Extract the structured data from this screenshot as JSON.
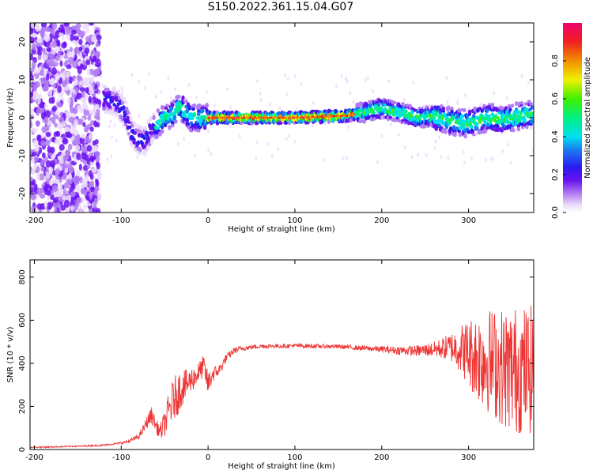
{
  "title": "S150.2022.361.15.04.G07",
  "chart_data": [
    {
      "type": "heatmap",
      "xlabel": "Height of straight line (km)",
      "ylabel": "Frequency (Hz)",
      "xlim": [
        -205,
        375
      ],
      "ylim": [
        -25,
        25
      ],
      "x_ticks": [
        -200,
        -100,
        0,
        100,
        200,
        300
      ],
      "y_ticks": [
        -20,
        -10,
        0,
        10,
        20
      ],
      "colorbar": {
        "label": "Normalized spectral amplitude",
        "range": [
          0.0,
          1.0
        ],
        "ticks": [
          0.0,
          0.2,
          0.4,
          0.6,
          0.8
        ],
        "tick_labels": [
          "0.0",
          "0.2",
          "0.4",
          "0.6",
          "0.8"
        ]
      },
      "ridge": {
        "x": [
          -115,
          -105,
          -95,
          -88,
          -80,
          -72,
          -65,
          -55,
          -40,
          -32,
          -20,
          0,
          50,
          100,
          130,
          160,
          180,
          200,
          220,
          240,
          260,
          280,
          300,
          320,
          340,
          360,
          375
        ],
        "freq": [
          5,
          4,
          1,
          -4,
          -6,
          -6,
          -3,
          -1,
          1,
          3,
          0,
          0,
          0,
          0,
          0.3,
          0.5,
          1.5,
          2.5,
          1.5,
          0,
          0.5,
          -1,
          -1.5,
          0,
          -0.5,
          0.5,
          1
        ]
      }
    },
    {
      "type": "line",
      "xlabel": "Height of straight line (km)",
      "ylabel": "SNR (10 * v/v)",
      "xlim": [
        -205,
        375
      ],
      "ylim": [
        0,
        880
      ],
      "x_ticks": [
        -200,
        -100,
        0,
        100,
        200,
        300
      ],
      "y_ticks": [
        0,
        200,
        400,
        600,
        800
      ],
      "color": "#ee3333",
      "series": [
        {
          "x": [
            -205,
            -180,
            -150,
            -120,
            -100,
            -90,
            -80,
            -75,
            -70,
            -65,
            -60,
            -55,
            -50,
            -45,
            -40,
            -35,
            -30,
            -25,
            -20,
            -15,
            -10,
            -5,
            0,
            5,
            10,
            15,
            20,
            30,
            40,
            60,
            80,
            100,
            120,
            150,
            180,
            200,
            220,
            240,
            260,
            270,
            280,
            290,
            300,
            310,
            320,
            330,
            340,
            350,
            360,
            375
          ],
          "y": [
            10,
            12,
            15,
            20,
            30,
            40,
            60,
            90,
            130,
            160,
            110,
            80,
            120,
            180,
            230,
            260,
            290,
            300,
            320,
            340,
            360,
            390,
            300,
            350,
            360,
            380,
            420,
            460,
            470,
            480,
            480,
            482,
            480,
            478,
            470,
            465,
            460,
            458,
            465,
            470,
            475,
            470,
            450,
            430,
            420,
            400,
            380,
            370,
            370,
            370
          ],
          "spread": [
            3,
            3,
            3,
            4,
            5,
            8,
            12,
            20,
            30,
            40,
            30,
            40,
            60,
            90,
            100,
            100,
            90,
            70,
            60,
            55,
            50,
            50,
            60,
            40,
            30,
            25,
            20,
            15,
            12,
            10,
            10,
            10,
            10,
            10,
            12,
            15,
            20,
            25,
            35,
            50,
            70,
            110,
            160,
            210,
            240,
            260,
            280,
            300,
            300,
            300
          ]
        }
      ]
    }
  ]
}
